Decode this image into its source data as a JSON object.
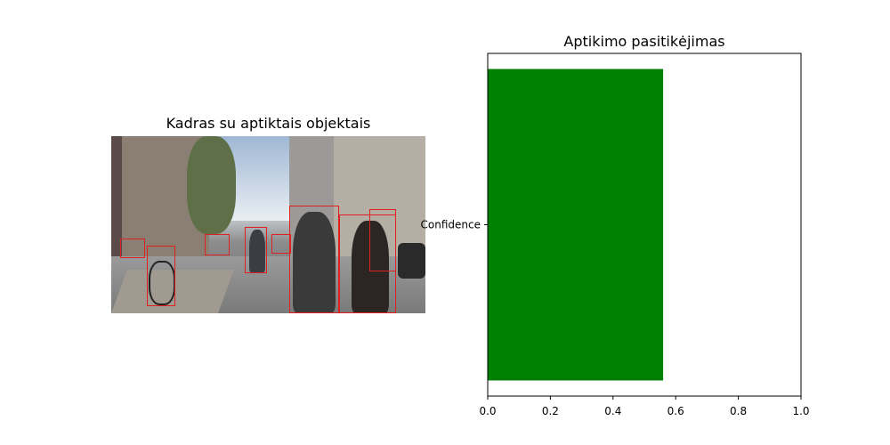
{
  "left_panel": {
    "title": "Kadras su aptiktais objektais"
  },
  "chart_data": {
    "type": "bar",
    "orientation": "horizontal",
    "title": "Aptikimo pasitikėjimas",
    "categories": [
      "Confidence"
    ],
    "values": [
      0.56
    ],
    "xlim": [
      0.0,
      1.0
    ],
    "xticks": [
      "0.0",
      "0.2",
      "0.4",
      "0.6",
      "0.8",
      "1.0"
    ],
    "bar_color": "#008000",
    "grid": false
  }
}
